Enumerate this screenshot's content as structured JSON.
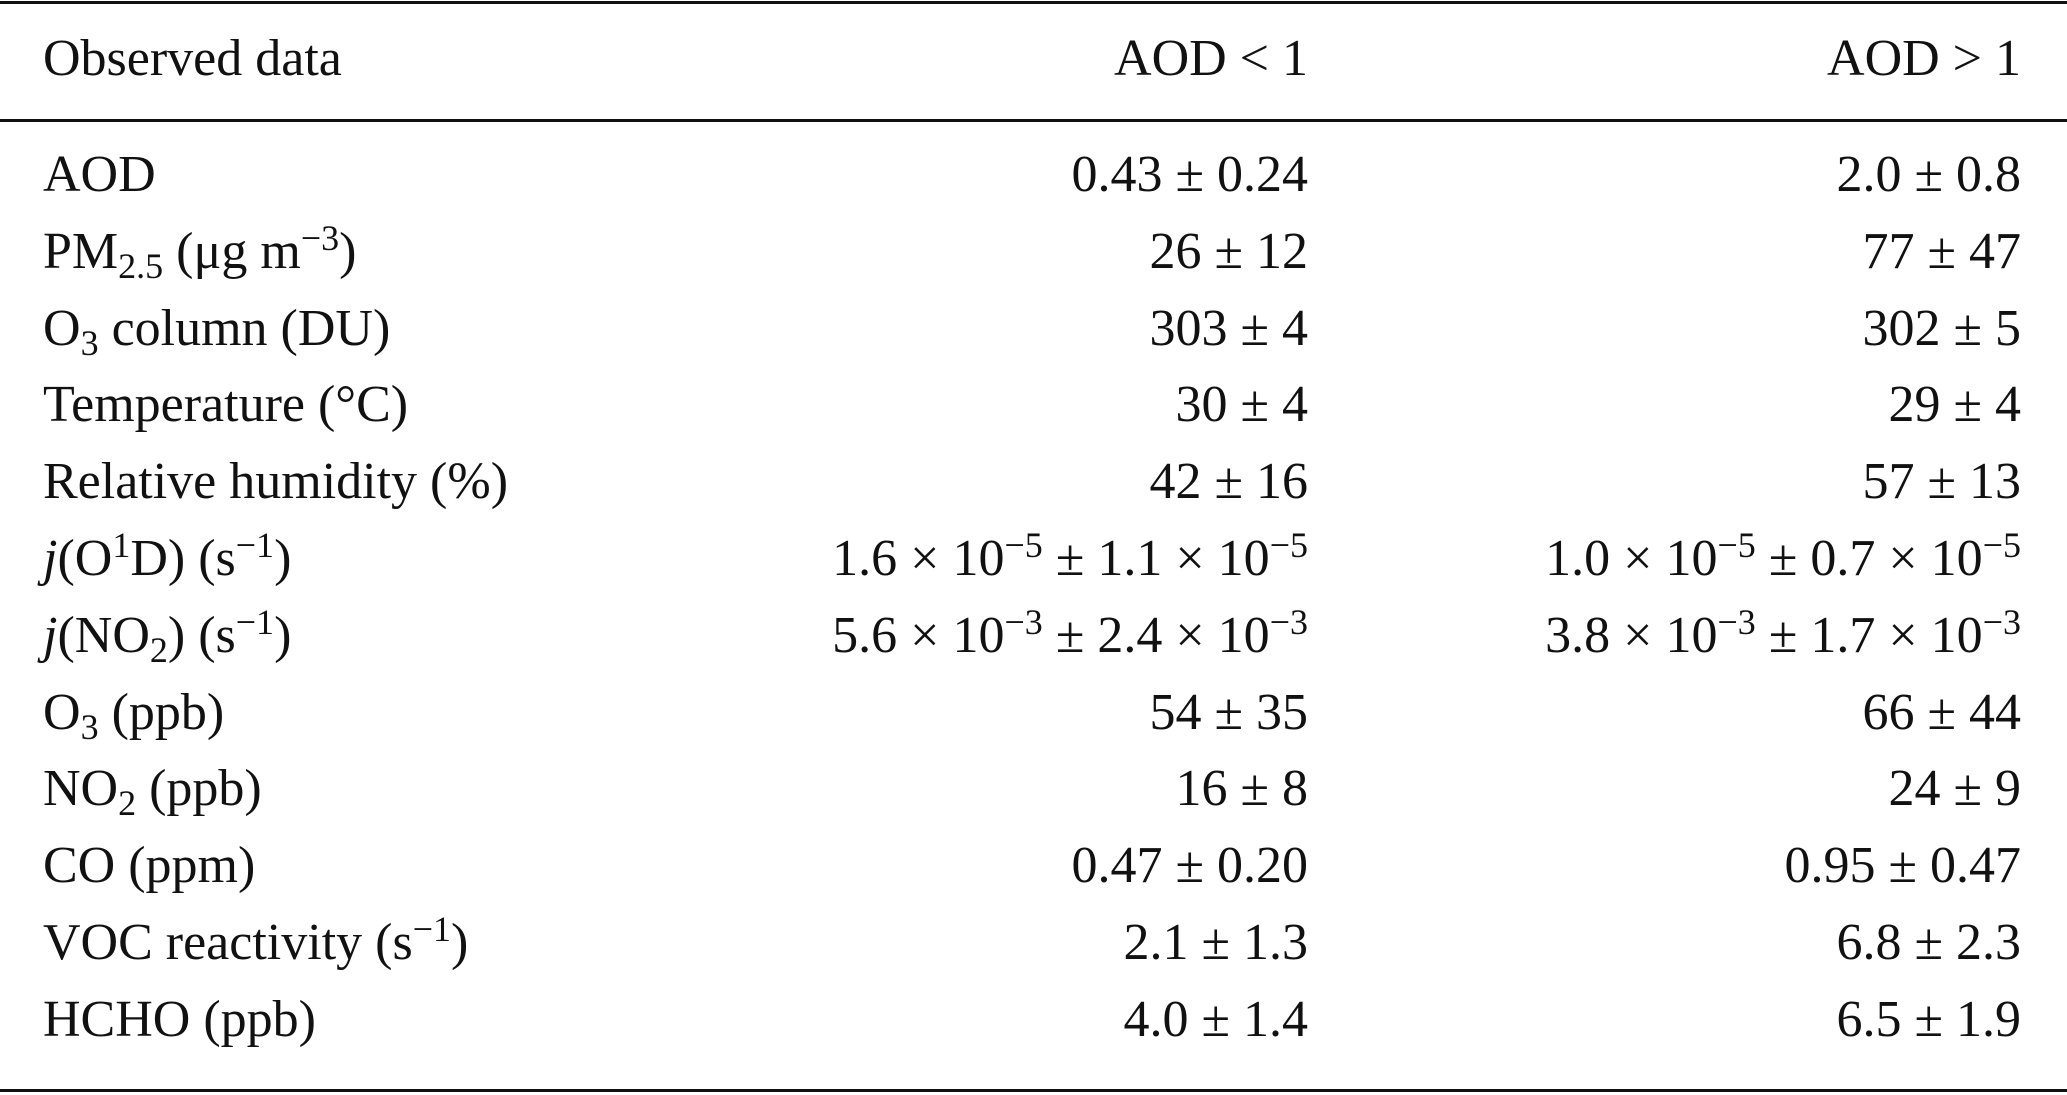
{
  "table": {
    "header": [
      "Observed data",
      "AOD < 1",
      "AOD > 1"
    ],
    "rows": [
      [
        "AOD",
        "0.43 ± 0.24",
        "2.0 ± 0.8"
      ],
      [
        [
          "PM",
          {
            "sub": "2.5"
          },
          " (μg m",
          {
            "sup": "−3"
          },
          ")"
        ],
        "26 ± 12",
        "77 ± 47"
      ],
      [
        [
          "O",
          {
            "sub": "3"
          },
          " column (DU)"
        ],
        "303 ± 4",
        "302 ± 5"
      ],
      [
        "Temperature (°C)",
        "30 ± 4",
        "29 ± 4"
      ],
      [
        "Relative humidity (%)",
        "42 ± 16",
        "57 ± 13"
      ],
      [
        [
          {
            "i": "j"
          },
          "(O",
          {
            "sup": "1"
          },
          "D) (s",
          {
            "sup": "−1"
          },
          ")"
        ],
        [
          "1.6 × 10",
          {
            "sup": "−5"
          },
          " ± 1.1 × 10",
          {
            "sup": "−5"
          }
        ],
        [
          "1.0 × 10",
          {
            "sup": "−5"
          },
          " ± 0.7 × 10",
          {
            "sup": "−5"
          }
        ]
      ],
      [
        [
          {
            "i": "j"
          },
          "(NO",
          {
            "sub": "2"
          },
          ") (s",
          {
            "sup": "−1"
          },
          ")"
        ],
        [
          "5.6 × 10",
          {
            "sup": "−3"
          },
          " ± 2.4 × 10",
          {
            "sup": "−3"
          }
        ],
        [
          "3.8 × 10",
          {
            "sup": "−3"
          },
          " ± 1.7 × 10",
          {
            "sup": "−3"
          }
        ]
      ],
      [
        [
          "O",
          {
            "sub": "3"
          },
          " (ppb)"
        ],
        "54 ± 35",
        "66 ± 44"
      ],
      [
        [
          "NO",
          {
            "sub": "2"
          },
          " (ppb)"
        ],
        "16 ± 8",
        "24 ± 9"
      ],
      [
        "CO (ppm)",
        "0.47 ± 0.20",
        "0.95 ± 0.47"
      ],
      [
        [
          "VOC reactivity (s",
          {
            "sup": "−1"
          },
          ")"
        ],
        "2.1 ± 1.3",
        "6.8 ± 2.3"
      ],
      [
        "HCHO (ppb)",
        "4.0 ± 1.4",
        "6.5 ± 1.9"
      ]
    ]
  }
}
